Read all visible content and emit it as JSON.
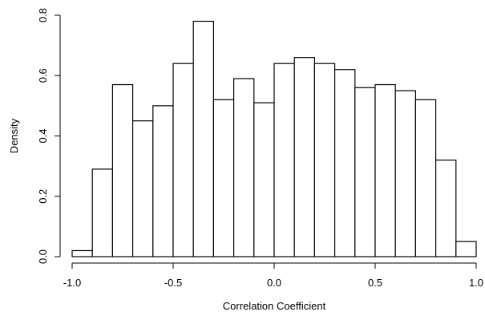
{
  "chart_data": {
    "type": "bar",
    "subtype": "histogram",
    "title": "",
    "xlabel": "Correlation Coefficient",
    "ylabel": "Density",
    "xlim": [
      -1.0,
      1.0
    ],
    "ylim": [
      0.0,
      0.8
    ],
    "grid": false,
    "bin_edges": [
      -1.0,
      -0.9,
      -0.8,
      -0.7,
      -0.6,
      -0.5,
      -0.4,
      -0.3,
      -0.2,
      -0.1,
      0.0,
      0.1,
      0.2,
      0.3,
      0.4,
      0.5,
      0.6,
      0.7,
      0.8,
      0.9,
      1.0
    ],
    "values": [
      0.02,
      0.29,
      0.57,
      0.45,
      0.5,
      0.64,
      0.78,
      0.52,
      0.59,
      0.51,
      0.64,
      0.66,
      0.64,
      0.62,
      0.56,
      0.57,
      0.55,
      0.52,
      0.32,
      0.05
    ],
    "x_ticks": [
      -1.0,
      -0.5,
      0.0,
      0.5,
      1.0
    ],
    "x_tick_labels": [
      "-1.0",
      "-0.5",
      "0.0",
      "0.5",
      "1.0"
    ],
    "y_ticks": [
      0.0,
      0.2,
      0.4,
      0.6,
      0.8
    ],
    "y_tick_labels": [
      "0.0",
      "0.2",
      "0.4",
      "0.6",
      "0.8"
    ]
  }
}
